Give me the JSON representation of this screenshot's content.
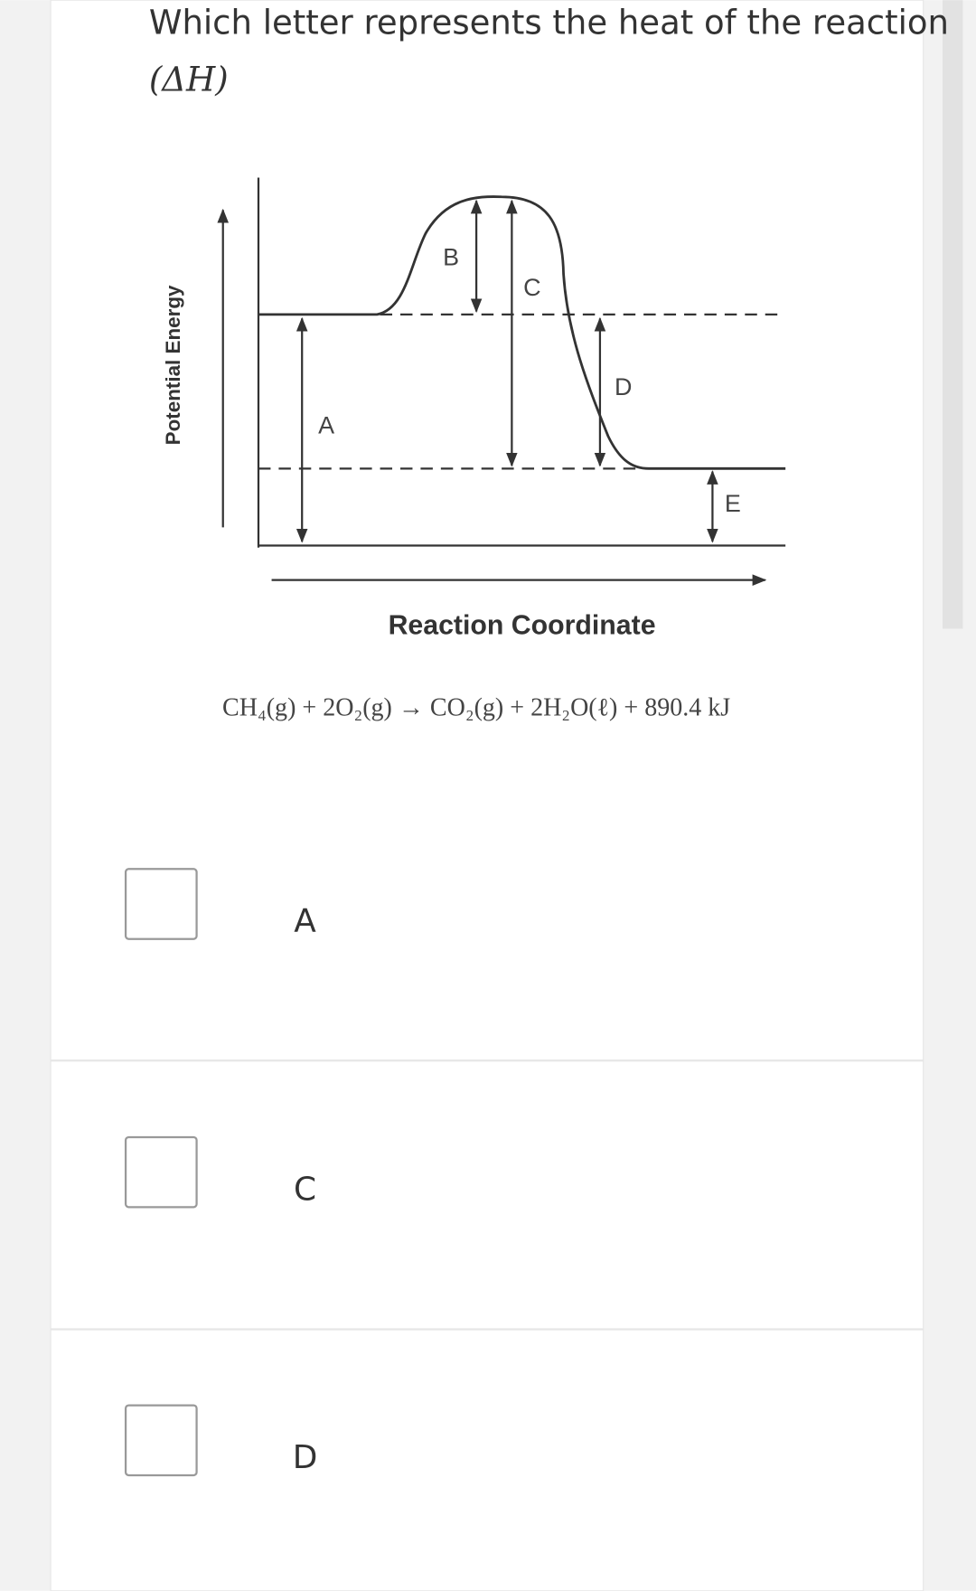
{
  "question": {
    "text": "Which letter represents the heat of the reaction",
    "math": "(ΔH)"
  },
  "diagram": {
    "y_axis_label": "Potential Energy",
    "x_axis_label": "Reaction Coordinate",
    "labels": [
      "A",
      "B",
      "C",
      "D",
      "E"
    ],
    "equation": "CH₄(g) + 2O₂(g) → CO₂(g) + 2H₂O(ℓ) + 890.4 kJ"
  },
  "options": [
    "A",
    "C",
    "D"
  ]
}
